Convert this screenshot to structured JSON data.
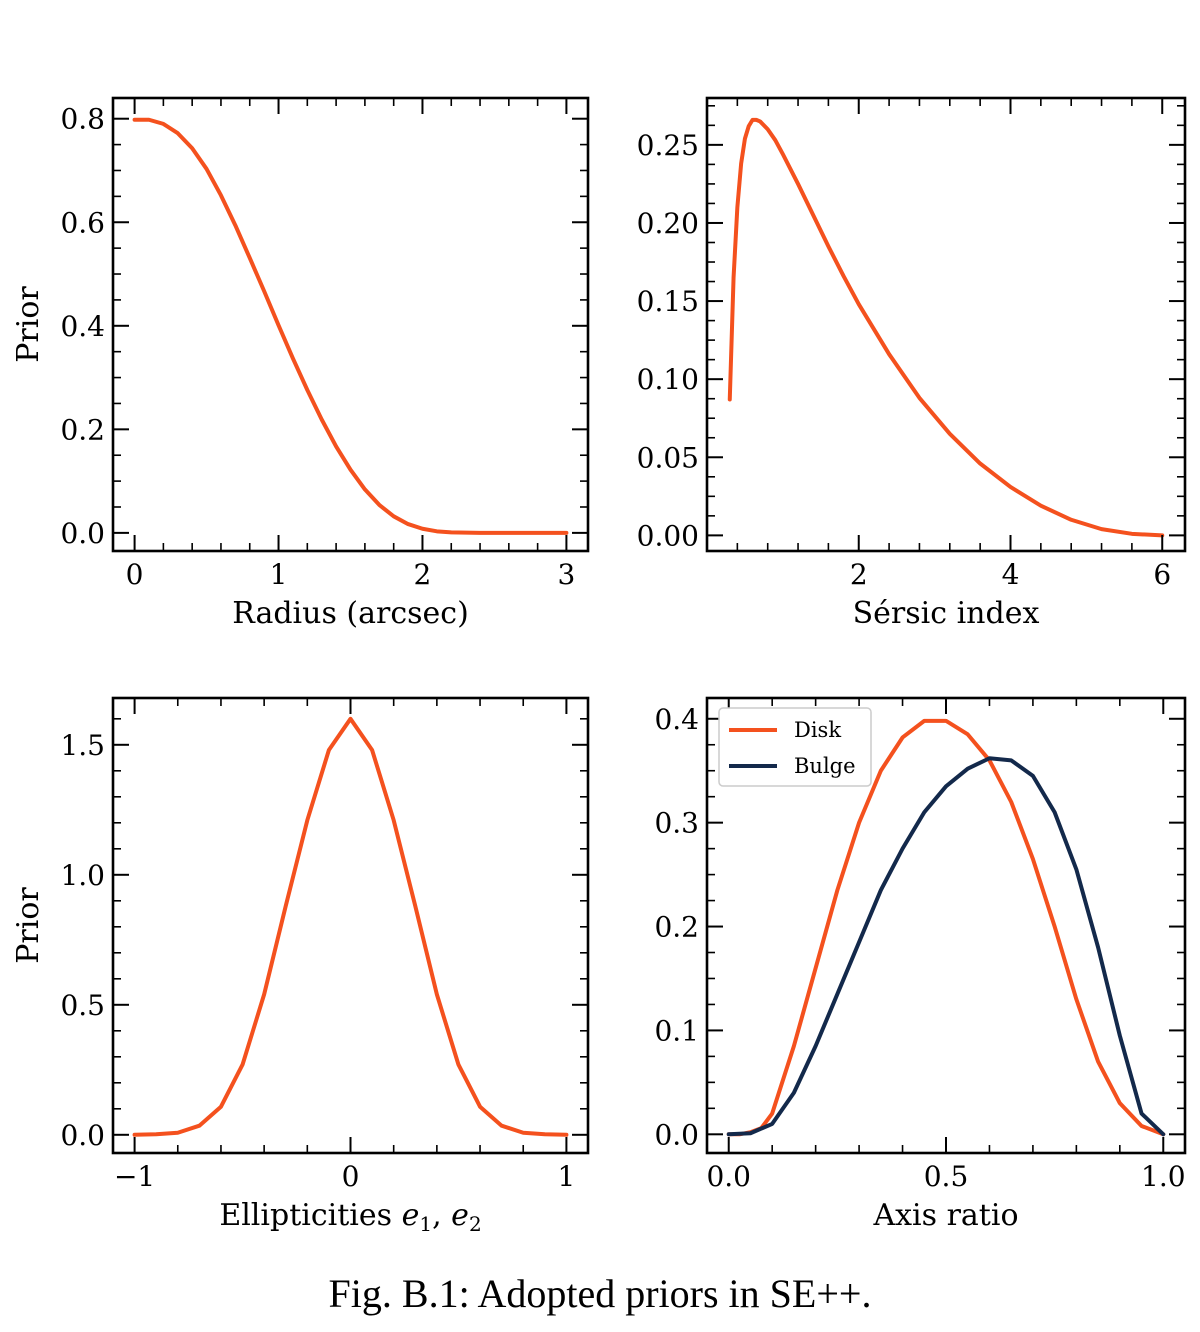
{
  "caption": "Fig. B.1: Adopted priors in SE++.",
  "colors": {
    "disk": "#f4511e",
    "bulge": "#13294b",
    "axes": "#000000"
  },
  "chart_data": [
    {
      "id": "radius",
      "type": "line",
      "title": "",
      "xlabel": "Radius (arcsec)",
      "ylabel": "Prior",
      "xlim": [
        -0.15,
        3.15
      ],
      "ylim": [
        -0.035,
        0.84
      ],
      "xticks": [
        0,
        1,
        2,
        3
      ],
      "xtick_labels": [
        "0",
        "1",
        "2",
        "3"
      ],
      "yticks": [
        0.0,
        0.2,
        0.4,
        0.6,
        0.8
      ],
      "ytick_labels": [
        "0.0",
        "0.2",
        "0.4",
        "0.6",
        "0.8"
      ],
      "x_minor_step": 0.2,
      "y_minor_step": 0.05,
      "series": [
        {
          "name": "prior",
          "color": "#f4511e",
          "x": [
            0.0,
            0.1,
            0.2,
            0.3,
            0.4,
            0.5,
            0.6,
            0.7,
            0.8,
            0.9,
            1.0,
            1.1,
            1.2,
            1.3,
            1.4,
            1.5,
            1.6,
            1.7,
            1.8,
            1.9,
            2.0,
            2.1,
            2.2,
            2.3,
            2.4,
            2.5,
            2.6,
            2.8,
            3.0
          ],
          "y": [
            0.798,
            0.798,
            0.79,
            0.772,
            0.743,
            0.703,
            0.652,
            0.594,
            0.531,
            0.467,
            0.401,
            0.337,
            0.276,
            0.219,
            0.167,
            0.122,
            0.084,
            0.054,
            0.032,
            0.017,
            0.008,
            0.003,
            0.001,
            0.0004,
            0.0001,
            0.0,
            0.0,
            0.0,
            0.0
          ]
        }
      ]
    },
    {
      "id": "sersic",
      "type": "line",
      "title": "",
      "xlabel": "Sérsic index",
      "ylabel": "",
      "xlim": [
        0.0,
        6.3
      ],
      "ylim": [
        -0.01,
        0.28
      ],
      "xticks": [
        2,
        4,
        6
      ],
      "xtick_labels": [
        "2",
        "4",
        "6"
      ],
      "yticks": [
        0.0,
        0.05,
        0.1,
        0.15,
        0.2,
        0.25
      ],
      "ytick_labels": [
        "0.00",
        "0.05",
        "0.10",
        "0.15",
        "0.20",
        "0.25"
      ],
      "x_minor_step": 0.4,
      "y_minor_step": 0.0125,
      "series": [
        {
          "name": "prior",
          "color": "#f4511e",
          "x": [
            0.3,
            0.35,
            0.4,
            0.45,
            0.5,
            0.55,
            0.6,
            0.65,
            0.7,
            0.8,
            0.9,
            1.0,
            1.2,
            1.4,
            1.6,
            1.8,
            2.0,
            2.4,
            2.8,
            3.2,
            3.6,
            4.0,
            4.4,
            4.8,
            5.2,
            5.6,
            6.0
          ],
          "y": [
            0.087,
            0.165,
            0.21,
            0.238,
            0.254,
            0.262,
            0.266,
            0.266,
            0.265,
            0.26,
            0.253,
            0.244,
            0.225,
            0.205,
            0.185,
            0.166,
            0.148,
            0.116,
            0.088,
            0.065,
            0.046,
            0.031,
            0.019,
            0.01,
            0.004,
            0.001,
            0.0
          ]
        }
      ]
    },
    {
      "id": "ellipticity",
      "type": "line",
      "title": "",
      "xlabel": "Ellipticities e1, e2",
      "ylabel": "Prior",
      "xlim": [
        -1.1,
        1.1
      ],
      "ylim": [
        -0.07,
        1.68
      ],
      "xticks": [
        -1,
        0,
        1
      ],
      "xtick_labels": [
        "−1",
        "0",
        "1"
      ],
      "yticks": [
        0.0,
        0.5,
        1.0,
        1.5
      ],
      "ytick_labels": [
        "0.0",
        "0.5",
        "1.0",
        "1.5"
      ],
      "x_minor_step": 0.2,
      "y_minor_step": 0.1,
      "series": [
        {
          "name": "prior",
          "color": "#f4511e",
          "x": [
            -1.0,
            -0.9,
            -0.8,
            -0.7,
            -0.6,
            -0.5,
            -0.4,
            -0.3,
            -0.2,
            -0.1,
            0.0,
            0.1,
            0.2,
            0.3,
            0.4,
            0.5,
            0.6,
            0.7,
            0.8,
            0.9,
            1.0
          ],
          "y": [
            0.0,
            0.002,
            0.008,
            0.035,
            0.108,
            0.27,
            0.54,
            0.88,
            1.21,
            1.48,
            1.6,
            1.48,
            1.21,
            0.88,
            0.54,
            0.27,
            0.108,
            0.035,
            0.008,
            0.002,
            0.0
          ]
        }
      ]
    },
    {
      "id": "axis-ratio",
      "type": "line",
      "title": "",
      "xlabel": "Axis ratio",
      "ylabel": "",
      "xlim": [
        -0.05,
        1.05
      ],
      "ylim": [
        -0.018,
        0.42
      ],
      "xticks": [
        0.0,
        0.5,
        1.0
      ],
      "xtick_labels": [
        "0.0",
        "0.5",
        "1.0"
      ],
      "yticks": [
        0.0,
        0.1,
        0.2,
        0.3,
        0.4
      ],
      "ytick_labels": [
        "0.0",
        "0.1",
        "0.2",
        "0.3",
        "0.4"
      ],
      "x_minor_step": 0.1,
      "y_minor_step": 0.025,
      "legend": {
        "loc": "upper left"
      },
      "series": [
        {
          "name": "Disk",
          "color": "#f4511e",
          "x": [
            0.0,
            0.025,
            0.05,
            0.075,
            0.1,
            0.15,
            0.2,
            0.25,
            0.3,
            0.35,
            0.4,
            0.45,
            0.5,
            0.55,
            0.6,
            0.65,
            0.7,
            0.75,
            0.8,
            0.85,
            0.9,
            0.95,
            1.0
          ],
          "y": [
            0.0,
            0.0,
            0.002,
            0.006,
            0.02,
            0.085,
            0.16,
            0.235,
            0.3,
            0.35,
            0.382,
            0.398,
            0.398,
            0.385,
            0.36,
            0.32,
            0.265,
            0.2,
            0.13,
            0.07,
            0.03,
            0.008,
            0.0
          ]
        },
        {
          "name": "Bulge",
          "color": "#13294b",
          "x": [
            0.0,
            0.05,
            0.1,
            0.15,
            0.2,
            0.25,
            0.3,
            0.35,
            0.4,
            0.45,
            0.5,
            0.55,
            0.6,
            0.65,
            0.7,
            0.75,
            0.8,
            0.85,
            0.9,
            0.95,
            1.0
          ],
          "y": [
            0.0,
            0.001,
            0.01,
            0.04,
            0.085,
            0.135,
            0.185,
            0.235,
            0.275,
            0.31,
            0.335,
            0.352,
            0.362,
            0.36,
            0.345,
            0.31,
            0.255,
            0.18,
            0.095,
            0.02,
            0.0
          ]
        }
      ]
    }
  ]
}
